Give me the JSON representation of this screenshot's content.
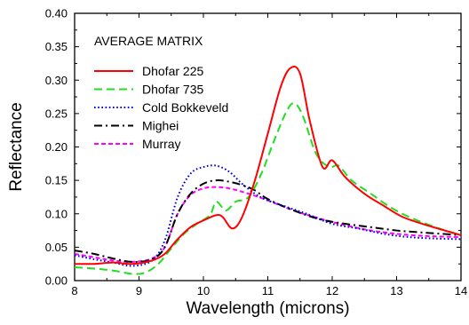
{
  "chart_data": {
    "type": "line",
    "title": "",
    "annotation": "AVERAGE MATRIX",
    "xlabel": "Wavelength (microns)",
    "ylabel": "Reflectance",
    "xlim": [
      8,
      14
    ],
    "ylim": [
      0,
      0.4
    ],
    "xticks": [
      "8",
      "9",
      "10",
      "11",
      "12",
      "13",
      "14"
    ],
    "yticks": [
      "0.00",
      "0.05",
      "0.10",
      "0.15",
      "0.20",
      "0.25",
      "0.30",
      "0.35",
      "0.40"
    ],
    "grid": false,
    "legend_position": "top-left",
    "series": [
      {
        "name": "Dhofar 225",
        "color": "#ff0000",
        "style": "solid",
        "points": [
          [
            8.0,
            0.025
          ],
          [
            8.3,
            0.025
          ],
          [
            8.6,
            0.027
          ],
          [
            8.9,
            0.025
          ],
          [
            9.2,
            0.03
          ],
          [
            9.4,
            0.04
          ],
          [
            9.6,
            0.062
          ],
          [
            9.8,
            0.08
          ],
          [
            10.0,
            0.09
          ],
          [
            10.2,
            0.098
          ],
          [
            10.3,
            0.095
          ],
          [
            10.45,
            0.078
          ],
          [
            10.6,
            0.095
          ],
          [
            10.8,
            0.15
          ],
          [
            11.0,
            0.22
          ],
          [
            11.2,
            0.29
          ],
          [
            11.35,
            0.318
          ],
          [
            11.5,
            0.31
          ],
          [
            11.65,
            0.24
          ],
          [
            11.85,
            0.17
          ],
          [
            12.0,
            0.18
          ],
          [
            12.2,
            0.155
          ],
          [
            12.5,
            0.13
          ],
          [
            12.8,
            0.112
          ],
          [
            13.1,
            0.095
          ],
          [
            13.5,
            0.082
          ],
          [
            14.0,
            0.068
          ]
        ]
      },
      {
        "name": "Dhofar 735",
        "color": "#22dd22",
        "style": "dashed",
        "points": [
          [
            8.0,
            0.02
          ],
          [
            8.3,
            0.018
          ],
          [
            8.6,
            0.015
          ],
          [
            8.9,
            0.01
          ],
          [
            9.1,
            0.012
          ],
          [
            9.3,
            0.025
          ],
          [
            9.5,
            0.048
          ],
          [
            9.7,
            0.07
          ],
          [
            9.9,
            0.085
          ],
          [
            10.1,
            0.098
          ],
          [
            10.2,
            0.118
          ],
          [
            10.35,
            0.105
          ],
          [
            10.5,
            0.118
          ],
          [
            10.7,
            0.125
          ],
          [
            10.9,
            0.16
          ],
          [
            11.1,
            0.21
          ],
          [
            11.3,
            0.255
          ],
          [
            11.42,
            0.265
          ],
          [
            11.55,
            0.245
          ],
          [
            11.75,
            0.19
          ],
          [
            11.95,
            0.17
          ],
          [
            12.1,
            0.172
          ],
          [
            12.3,
            0.15
          ],
          [
            12.6,
            0.13
          ],
          [
            12.9,
            0.11
          ],
          [
            13.2,
            0.095
          ],
          [
            13.6,
            0.08
          ],
          [
            14.0,
            0.068
          ]
        ]
      },
      {
        "name": "Cold Bokkeveld",
        "color": "#0000dd",
        "style": "dotted",
        "points": [
          [
            8.0,
            0.038
          ],
          [
            8.3,
            0.032
          ],
          [
            8.6,
            0.027
          ],
          [
            8.9,
            0.022
          ],
          [
            9.2,
            0.03
          ],
          [
            9.4,
            0.06
          ],
          [
            9.6,
            0.125
          ],
          [
            9.8,
            0.16
          ],
          [
            10.0,
            0.17
          ],
          [
            10.2,
            0.172
          ],
          [
            10.4,
            0.163
          ],
          [
            10.6,
            0.145
          ],
          [
            10.8,
            0.13
          ],
          [
            11.0,
            0.12
          ],
          [
            11.3,
            0.11
          ],
          [
            11.6,
            0.1
          ],
          [
            12.0,
            0.085
          ],
          [
            12.4,
            0.078
          ],
          [
            12.8,
            0.07
          ],
          [
            13.2,
            0.065
          ],
          [
            13.6,
            0.063
          ],
          [
            14.0,
            0.062
          ]
        ]
      },
      {
        "name": "Mighei",
        "color": "#000000",
        "style": "dashdot",
        "points": [
          [
            8.0,
            0.045
          ],
          [
            8.3,
            0.04
          ],
          [
            8.6,
            0.033
          ],
          [
            8.9,
            0.028
          ],
          [
            9.2,
            0.032
          ],
          [
            9.4,
            0.05
          ],
          [
            9.6,
            0.1
          ],
          [
            9.8,
            0.13
          ],
          [
            10.0,
            0.145
          ],
          [
            10.2,
            0.15
          ],
          [
            10.4,
            0.148
          ],
          [
            10.6,
            0.143
          ],
          [
            10.8,
            0.135
          ],
          [
            11.0,
            0.122
          ],
          [
            11.4,
            0.105
          ],
          [
            11.8,
            0.092
          ],
          [
            12.2,
            0.085
          ],
          [
            12.6,
            0.08
          ],
          [
            13.0,
            0.075
          ],
          [
            13.4,
            0.072
          ],
          [
            14.0,
            0.068
          ]
        ]
      },
      {
        "name": "Murray",
        "color": "#ff00ff",
        "style": "shortdash",
        "points": [
          [
            8.0,
            0.04
          ],
          [
            8.3,
            0.035
          ],
          [
            8.6,
            0.03
          ],
          [
            8.9,
            0.028
          ],
          [
            9.2,
            0.033
          ],
          [
            9.4,
            0.05
          ],
          [
            9.6,
            0.1
          ],
          [
            9.8,
            0.128
          ],
          [
            10.0,
            0.138
          ],
          [
            10.2,
            0.14
          ],
          [
            10.4,
            0.138
          ],
          [
            10.6,
            0.133
          ],
          [
            10.8,
            0.127
          ],
          [
            11.0,
            0.12
          ],
          [
            11.4,
            0.105
          ],
          [
            11.8,
            0.093
          ],
          [
            12.2,
            0.083
          ],
          [
            12.6,
            0.075
          ],
          [
            13.0,
            0.07
          ],
          [
            13.4,
            0.067
          ],
          [
            14.0,
            0.065
          ]
        ]
      }
    ]
  }
}
